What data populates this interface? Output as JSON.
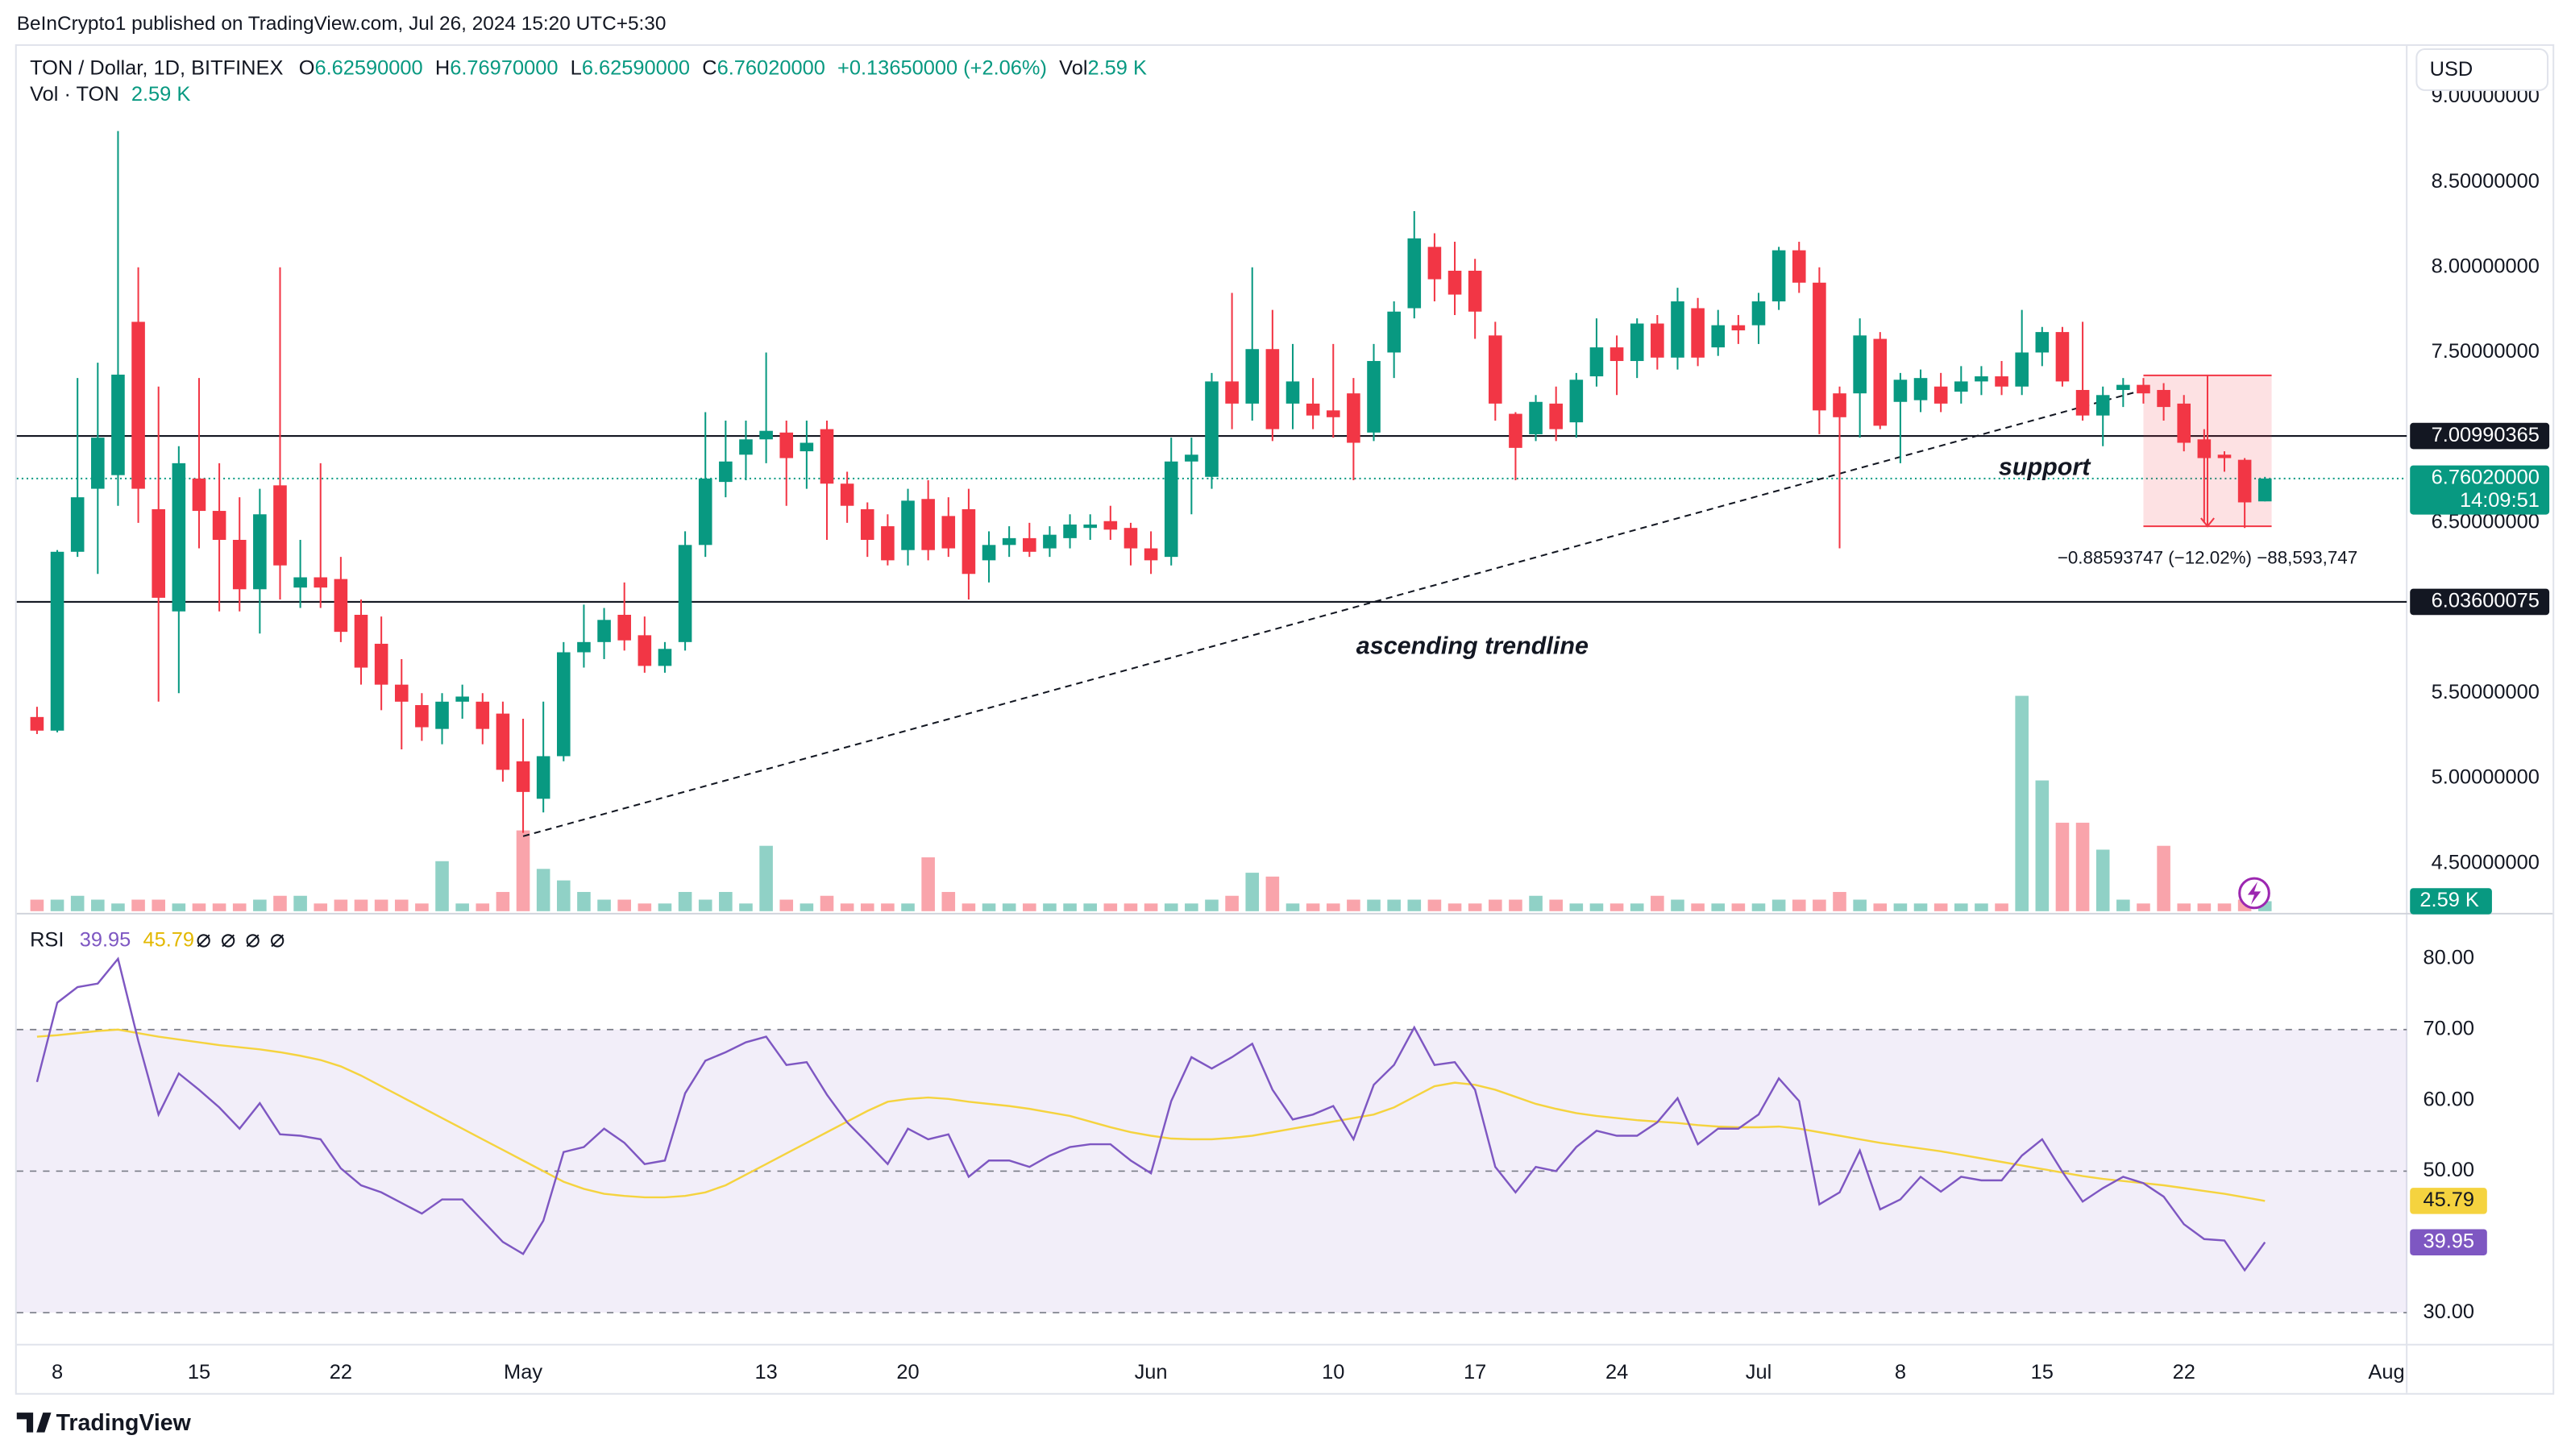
{
  "header": {
    "published": "BeInCrypto1 published on TradingView.com, Jul 26, 2024 15:20 UTC+5:30",
    "currency": "USD",
    "logo": "TradingView"
  },
  "chart_data": {
    "type": "candlestick",
    "title": "TON / Dollar, 1D, BITFINEX",
    "legend": {
      "o_label": "O",
      "o": "6.62590000",
      "h_label": "H",
      "h": "6.76970000",
      "l_label": "L",
      "l": "6.62590000",
      "c_label": "C",
      "change": "+0.13650000 (+2.06%)",
      "vol_label": "Vol"
    },
    "volume_title": "Vol · TON",
    "volume_label": "2.59 K",
    "up_color": "#089981",
    "down_color": "#f23645",
    "x": [
      "2024-04-07",
      "2024-04-08",
      "2024-04-09",
      "2024-04-10",
      "2024-04-11",
      "2024-04-12",
      "2024-04-13",
      "2024-04-14",
      "2024-04-15",
      "2024-04-16",
      "2024-04-17",
      "2024-04-18",
      "2024-04-19",
      "2024-04-20",
      "2024-04-21",
      "2024-04-22",
      "2024-04-23",
      "2024-04-24",
      "2024-04-25",
      "2024-04-26",
      "2024-04-27",
      "2024-04-28",
      "2024-04-29",
      "2024-04-30",
      "2024-05-01",
      "2024-05-02",
      "2024-05-03",
      "2024-05-04",
      "2024-05-05",
      "2024-05-06",
      "2024-05-07",
      "2024-05-08",
      "2024-05-09",
      "2024-05-10",
      "2024-05-11",
      "2024-05-12",
      "2024-05-13",
      "2024-05-14",
      "2024-05-15",
      "2024-05-16",
      "2024-05-17",
      "2024-05-18",
      "2024-05-19",
      "2024-05-20",
      "2024-05-21",
      "2024-05-22",
      "2024-05-23",
      "2024-05-24",
      "2024-05-25",
      "2024-05-26",
      "2024-05-27",
      "2024-05-28",
      "2024-05-29",
      "2024-05-30",
      "2024-05-31",
      "2024-06-01",
      "2024-06-02",
      "2024-06-03",
      "2024-06-04",
      "2024-06-05",
      "2024-06-06",
      "2024-06-07",
      "2024-06-08",
      "2024-06-09",
      "2024-06-10",
      "2024-06-11",
      "2024-06-12",
      "2024-06-13",
      "2024-06-14",
      "2024-06-15",
      "2024-06-16",
      "2024-06-17",
      "2024-06-18",
      "2024-06-19",
      "2024-06-20",
      "2024-06-21",
      "2024-06-22",
      "2024-06-23",
      "2024-06-24",
      "2024-06-25",
      "2024-06-26",
      "2024-06-27",
      "2024-06-28",
      "2024-06-29",
      "2024-06-30",
      "2024-07-01",
      "2024-07-02",
      "2024-07-03",
      "2024-07-04",
      "2024-07-05",
      "2024-07-06",
      "2024-07-07",
      "2024-07-08",
      "2024-07-09",
      "2024-07-10",
      "2024-07-11",
      "2024-07-12",
      "2024-07-13",
      "2024-07-14",
      "2024-07-15",
      "2024-07-16",
      "2024-07-17",
      "2024-07-18",
      "2024-07-19",
      "2024-07-20",
      "2024-07-21",
      "2024-07-22",
      "2024-07-23",
      "2024-07-24",
      "2024-07-25",
      "2024-07-26"
    ],
    "ohlc": [
      [
        5.36,
        5.42,
        5.26,
        5.28
      ],
      [
        5.28,
        6.34,
        5.27,
        6.33
      ],
      [
        6.33,
        7.35,
        6.3,
        6.65
      ],
      [
        6.7,
        7.44,
        6.2,
        7.0
      ],
      [
        6.78,
        8.8,
        6.6,
        7.37
      ],
      [
        7.68,
        8.0,
        6.5,
        6.7
      ],
      [
        6.58,
        7.3,
        5.45,
        6.06
      ],
      [
        5.98,
        6.95,
        5.5,
        6.85
      ],
      [
        6.76,
        7.35,
        6.35,
        6.57
      ],
      [
        6.57,
        6.85,
        5.98,
        6.4
      ],
      [
        6.4,
        6.65,
        5.98,
        6.11
      ],
      [
        6.11,
        6.7,
        5.85,
        6.55
      ],
      [
        6.72,
        8.0,
        6.05,
        6.25
      ],
      [
        6.12,
        6.4,
        6.0,
        6.18
      ],
      [
        6.18,
        6.85,
        6.0,
        6.12
      ],
      [
        6.17,
        6.3,
        5.8,
        5.86
      ],
      [
        5.96,
        6.05,
        5.55,
        5.65
      ],
      [
        5.79,
        5.95,
        5.4,
        5.55
      ],
      [
        5.55,
        5.7,
        5.17,
        5.45
      ],
      [
        5.43,
        5.5,
        5.22,
        5.3
      ],
      [
        5.29,
        5.5,
        5.2,
        5.45
      ],
      [
        5.45,
        5.55,
        5.35,
        5.48
      ],
      [
        5.45,
        5.5,
        5.2,
        5.29
      ],
      [
        5.38,
        5.45,
        4.98,
        5.05
      ],
      [
        5.1,
        5.35,
        4.68,
        4.92
      ],
      [
        4.88,
        5.45,
        4.8,
        5.13
      ],
      [
        5.13,
        5.8,
        5.1,
        5.74
      ],
      [
        5.74,
        6.02,
        5.65,
        5.8
      ],
      [
        5.8,
        6.0,
        5.7,
        5.93
      ],
      [
        5.96,
        6.15,
        5.75,
        5.81
      ],
      [
        5.84,
        5.95,
        5.62,
        5.66
      ],
      [
        5.66,
        5.8,
        5.62,
        5.76
      ],
      [
        5.8,
        6.45,
        5.75,
        6.37
      ],
      [
        6.37,
        7.15,
        6.3,
        6.76
      ],
      [
        6.74,
        7.1,
        6.65,
        6.86
      ],
      [
        6.9,
        7.1,
        6.75,
        6.99
      ],
      [
        6.99,
        7.5,
        6.85,
        7.04
      ],
      [
        7.03,
        7.1,
        6.6,
        6.88
      ],
      [
        6.92,
        7.1,
        6.7,
        6.97
      ],
      [
        7.05,
        7.1,
        6.4,
        6.73
      ],
      [
        6.73,
        6.8,
        6.5,
        6.6
      ],
      [
        6.58,
        6.62,
        6.3,
        6.4
      ],
      [
        6.48,
        6.55,
        6.25,
        6.28
      ],
      [
        6.34,
        6.7,
        6.25,
        6.63
      ],
      [
        6.64,
        6.75,
        6.28,
        6.34
      ],
      [
        6.54,
        6.65,
        6.3,
        6.35
      ],
      [
        6.58,
        6.7,
        6.05,
        6.2
      ],
      [
        6.28,
        6.45,
        6.15,
        6.37
      ],
      [
        6.37,
        6.48,
        6.3,
        6.41
      ],
      [
        6.41,
        6.5,
        6.3,
        6.33
      ],
      [
        6.35,
        6.48,
        6.3,
        6.43
      ],
      [
        6.41,
        6.55,
        6.35,
        6.49
      ],
      [
        6.47,
        6.55,
        6.4,
        6.49
      ],
      [
        6.51,
        6.6,
        6.4,
        6.46
      ],
      [
        6.47,
        6.5,
        6.25,
        6.35
      ],
      [
        6.35,
        6.45,
        6.2,
        6.28
      ],
      [
        6.3,
        7.0,
        6.25,
        6.86
      ],
      [
        6.86,
        7.0,
        6.55,
        6.9
      ],
      [
        6.77,
        7.38,
        6.7,
        7.33
      ],
      [
        7.33,
        7.85,
        7.05,
        7.2
      ],
      [
        7.2,
        8.0,
        7.1,
        7.52
      ],
      [
        7.52,
        7.75,
        6.98,
        7.05
      ],
      [
        7.2,
        7.55,
        7.05,
        7.33
      ],
      [
        7.2,
        7.35,
        7.05,
        7.13
      ],
      [
        7.16,
        7.55,
        7.0,
        7.12
      ],
      [
        7.26,
        7.35,
        6.75,
        6.97
      ],
      [
        7.03,
        7.55,
        6.98,
        7.45
      ],
      [
        7.5,
        7.8,
        7.35,
        7.74
      ],
      [
        7.76,
        8.33,
        7.7,
        8.17
      ],
      [
        8.12,
        8.2,
        7.8,
        7.93
      ],
      [
        7.98,
        8.15,
        7.72,
        7.84
      ],
      [
        7.98,
        8.05,
        7.58,
        7.74
      ],
      [
        7.6,
        7.68,
        7.1,
        7.2
      ],
      [
        7.14,
        7.15,
        6.75,
        6.94
      ],
      [
        7.02,
        7.25,
        6.98,
        7.21
      ],
      [
        7.2,
        7.3,
        6.98,
        7.05
      ],
      [
        7.09,
        7.38,
        7.0,
        7.34
      ],
      [
        7.36,
        7.7,
        7.3,
        7.53
      ],
      [
        7.53,
        7.6,
        7.25,
        7.45
      ],
      [
        7.45,
        7.7,
        7.35,
        7.67
      ],
      [
        7.67,
        7.72,
        7.4,
        7.47
      ],
      [
        7.47,
        7.88,
        7.4,
        7.8
      ],
      [
        7.76,
        7.82,
        7.42,
        7.47
      ],
      [
        7.53,
        7.75,
        7.48,
        7.66
      ],
      [
        7.66,
        7.72,
        7.55,
        7.63
      ],
      [
        7.66,
        7.85,
        7.55,
        7.8
      ],
      [
        7.8,
        8.12,
        7.75,
        8.1
      ],
      [
        8.1,
        8.15,
        7.85,
        7.91
      ],
      [
        7.91,
        8.0,
        7.02,
        7.16
      ],
      [
        7.26,
        7.3,
        6.35,
        7.12
      ],
      [
        7.26,
        7.7,
        7.0,
        7.6
      ],
      [
        7.58,
        7.62,
        7.05,
        7.07
      ],
      [
        7.21,
        7.38,
        6.85,
        7.34
      ],
      [
        7.22,
        7.4,
        7.15,
        7.35
      ],
      [
        7.3,
        7.38,
        7.15,
        7.2
      ],
      [
        7.27,
        7.42,
        7.2,
        7.33
      ],
      [
        7.33,
        7.42,
        7.25,
        7.36
      ],
      [
        7.36,
        7.45,
        7.25,
        7.3
      ],
      [
        7.3,
        7.75,
        7.25,
        7.5
      ],
      [
        7.5,
        7.65,
        7.42,
        7.62
      ],
      [
        7.62,
        7.65,
        7.3,
        7.33
      ],
      [
        7.28,
        7.68,
        7.1,
        7.13
      ],
      [
        7.13,
        7.3,
        6.95,
        7.25
      ],
      [
        7.28,
        7.35,
        7.18,
        7.31
      ],
      [
        7.31,
        7.35,
        7.2,
        7.26
      ],
      [
        7.28,
        7.32,
        7.1,
        7.18
      ],
      [
        7.2,
        7.25,
        6.92,
        6.97
      ],
      [
        6.99,
        7.05,
        6.5,
        6.88
      ],
      [
        6.9,
        6.92,
        6.8,
        6.88
      ],
      [
        6.87,
        6.88,
        6.47,
        6.62
      ],
      [
        6.6259,
        6.7697,
        6.6259,
        6.7602
      ]
    ],
    "volume": [
      3,
      3,
      4,
      3,
      2,
      3,
      3,
      2,
      2,
      2,
      2,
      3,
      4,
      4,
      2,
      3,
      3,
      3,
      3,
      2,
      13,
      2,
      2,
      5,
      21,
      11,
      8,
      5,
      3,
      3,
      2,
      2,
      5,
      3,
      5,
      2,
      17,
      3,
      2,
      4,
      2,
      2,
      2,
      2,
      14,
      5,
      2,
      2,
      2,
      2,
      2,
      2,
      2,
      2,
      2,
      2,
      2,
      2,
      3,
      4,
      10,
      9,
      2,
      2,
      2,
      3,
      3,
      3,
      3,
      3,
      2,
      2,
      3,
      3,
      4,
      3,
      2,
      2,
      2,
      2,
      4,
      3,
      2,
      2,
      2,
      2,
      3,
      3,
      3,
      5,
      3,
      2,
      2,
      2,
      2,
      2,
      2,
      2,
      56,
      34,
      23,
      23,
      16,
      3,
      2,
      17,
      2,
      2,
      2,
      3,
      2.59
    ],
    "volume_lim": [
      0,
      225
    ],
    "xlim": [
      "2024-04-06",
      "2024-08-02"
    ],
    "xticks": [
      {
        "value": "2024-04-08",
        "label": "8"
      },
      {
        "value": "2024-04-15",
        "label": "15"
      },
      {
        "value": "2024-04-22",
        "label": "22"
      },
      {
        "value": "2024-05-01",
        "label": "May"
      },
      {
        "value": "2024-05-13",
        "label": "13"
      },
      {
        "value": "2024-05-20",
        "label": "20"
      },
      {
        "value": "2024-06-01",
        "label": "Jun"
      },
      {
        "value": "2024-06-10",
        "label": "10"
      },
      {
        "value": "2024-06-17",
        "label": "17"
      },
      {
        "value": "2024-06-24",
        "label": "24"
      },
      {
        "value": "2024-07-01",
        "label": "Jul"
      },
      {
        "value": "2024-07-08",
        "label": "8"
      },
      {
        "value": "2024-07-15",
        "label": "15"
      },
      {
        "value": "2024-07-22",
        "label": "22"
      },
      {
        "value": "2024-08-01",
        "label": "Aug"
      }
    ],
    "ylim": [
      4.22,
      9.3
    ],
    "yticks": [
      {
        "value": 9,
        "label": "9.00000000"
      },
      {
        "value": 8.5,
        "label": "8.50000000"
      },
      {
        "value": 8,
        "label": "8.00000000"
      },
      {
        "value": 7.5,
        "label": "7.50000000"
      },
      {
        "value": 6.5,
        "label": "6.50000000"
      },
      {
        "value": 5.5,
        "label": "5.50000000"
      },
      {
        "value": 5,
        "label": "5.00000000"
      },
      {
        "value": 4.5,
        "label": "4.50000000"
      }
    ],
    "grid": false,
    "hlines": [
      {
        "value": 7.00990365,
        "label": "7.00990365"
      },
      {
        "value": 6.03600075,
        "label": "6.03600075"
      }
    ],
    "last_price": {
      "value": 6.7602,
      "label": "6.76020000",
      "countdown": "14:09:51"
    },
    "trendline": {
      "x": [
        "2024-05-01",
        "2024-07-20"
      ],
      "y": [
        4.66,
        7.28
      ],
      "label": "ascending trendline"
    },
    "support_label": "support",
    "measure": {
      "x": [
        "2024-07-20",
        "2024-07-26"
      ],
      "y": [
        7.3655,
        6.4796
      ],
      "label": "−0.88593747 (−12.02%) −88,593,747"
    },
    "rsi": {
      "title": "RSI",
      "color": "#7e57c2",
      "ma_color": "#f5d33f",
      "values": [
        62.6,
        73.8,
        76,
        76.5,
        80,
        68.4,
        58,
        63.8,
        61.5,
        59,
        56,
        59.6,
        55.2,
        55,
        54.5,
        50.4,
        48,
        47,
        45.5,
        44,
        46,
        46,
        43,
        40,
        38.3,
        43,
        52.7,
        53.4,
        56,
        54,
        51,
        51.5,
        61,
        65.6,
        66.8,
        68.2,
        69,
        65,
        65.4,
        60.8,
        56.9,
        54,
        51,
        56,
        54.5,
        55.2,
        49.2,
        51.5,
        51.5,
        50.6,
        52.2,
        53.4,
        53.8,
        53.8,
        51.5,
        49.7,
        59.9,
        66.1,
        64.5,
        66.1,
        68,
        61.5,
        57.3,
        58,
        59.2,
        54.5,
        62.2,
        65,
        70.3,
        65,
        65.4,
        61.5,
        50.6,
        47,
        50.6,
        50,
        53.4,
        55.7,
        55,
        55,
        56.9,
        60.3,
        53.8,
        56,
        56,
        58,
        63.1,
        59.9,
        45.3,
        47,
        52.9,
        44.6,
        46,
        49.2,
        47.1,
        49.2,
        48.7,
        48.7,
        52.2,
        54.5,
        49.9,
        45.7,
        47.6,
        49.2,
        48.3,
        46.4,
        42.5,
        40.4,
        40.2,
        36,
        39.95
      ],
      "ma": [
        69,
        69.2,
        69.5,
        69.8,
        70,
        69.5,
        69,
        68.6,
        68.2,
        67.8,
        67.5,
        67.2,
        66.8,
        66.3,
        65.7,
        64.8,
        63.5,
        62,
        60.5,
        59,
        57.5,
        56,
        54.5,
        53,
        51.5,
        50,
        48.5,
        47.5,
        46.8,
        46.5,
        46.3,
        46.3,
        46.5,
        47,
        48,
        49.5,
        51,
        52.5,
        54,
        55.5,
        57,
        58.5,
        59.8,
        60.2,
        60.4,
        60.2,
        59.8,
        59.5,
        59.2,
        58.8,
        58.3,
        57.8,
        57,
        56.2,
        55.5,
        55,
        54.6,
        54.5,
        54.5,
        54.7,
        55,
        55.5,
        56,
        56.5,
        57,
        57.5,
        58,
        59,
        60.5,
        62,
        62.5,
        62.2,
        61.5,
        60.5,
        59.5,
        58.8,
        58.2,
        57.8,
        57.5,
        57.2,
        57,
        56.8,
        56.5,
        56.3,
        56.2,
        56.2,
        56.3,
        56,
        55.5,
        55,
        54.5,
        54,
        53.6,
        53.2,
        52.8,
        52.3,
        51.8,
        51.3,
        50.8,
        50.3,
        49.8,
        49.3,
        48.9,
        48.6,
        48.3,
        48,
        47.6,
        47.2,
        46.8,
        46.3,
        45.79
      ],
      "ylim": [
        25.6,
        85.8
      ],
      "yticks": [
        {
          "value": 80,
          "label": "80.00"
        },
        {
          "value": 70,
          "label": "70.00"
        },
        {
          "value": 60,
          "label": "60.00"
        },
        {
          "value": 50,
          "label": "50.00"
        },
        {
          "value": 30,
          "label": "30.00"
        }
      ],
      "levels": [
        70,
        50,
        30
      ],
      "band": [
        30,
        70
      ]
    }
  }
}
